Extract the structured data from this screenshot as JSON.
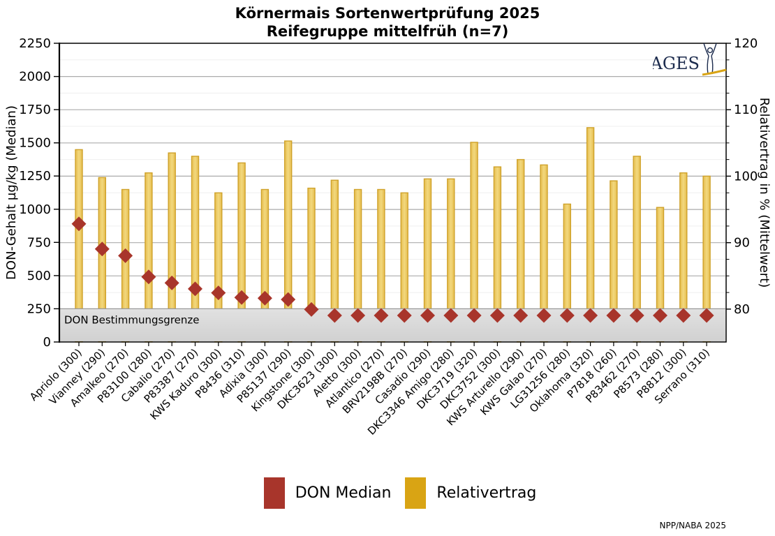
{
  "title": {
    "line1": "Körnermais Sortenwertprüfung 2025",
    "line2": "Reifegruppe mittelfrüh (n=7)"
  },
  "branding": {
    "logo": "AGES",
    "credit": "NPP/NABA 2025"
  },
  "colors": {
    "bar_fill": "#eac75e",
    "bar_border": "#cfa22b",
    "marker_red": "#a8352b",
    "legend_gold": "#d9a414",
    "band_gray": "#d8d8d8",
    "logo_navy": "#1c2b4d",
    "logo_gold": "#d9a414"
  },
  "chart_data": {
    "type": "bar",
    "categories": [
      "Apriolo (300)",
      "Vianney (290)",
      "Amalkeo (270)",
      "P83100 (280)",
      "Cabalio (270)",
      "P83387 (270)",
      "KWS Kaduro (300)",
      "P8436 (310)",
      "Adixia (300)",
      "P85137 (290)",
      "Kingstone (300)",
      "DKC3623 (300)",
      "Aletto (300)",
      "Atlantico (270)",
      "BRV2198B (270)",
      "Casadio (290)",
      "DKC3346 Amigo (280)",
      "DKC3719 (320)",
      "DKC3752 (300)",
      "KWS Arturello (290)",
      "KWS Galao (270)",
      "LG31256 (280)",
      "Oklahoma (320)",
      "P7818 (260)",
      "P83462 (270)",
      "P8573 (280)",
      "P8812 (300)",
      "Serrano (310)"
    ],
    "series": [
      {
        "name": "DON Median",
        "type": "scatter",
        "marker": "diamond",
        "axis": "left",
        "color": "#a8352b",
        "values": [
          890,
          700,
          650,
          490,
          445,
          400,
          370,
          335,
          330,
          320,
          245,
          200,
          200,
          200,
          200,
          200,
          200,
          200,
          200,
          200,
          200,
          200,
          200,
          200,
          200,
          200,
          200,
          200
        ]
      },
      {
        "name": "Relativertrag",
        "type": "bar",
        "axis": "right",
        "color": "#eac75e",
        "border_color": "#cfa22b",
        "values": [
          104.0,
          99.8,
          98.0,
          100.5,
          103.5,
          103.0,
          97.5,
          102.0,
          98.0,
          105.3,
          98.2,
          99.4,
          98.0,
          98.0,
          97.5,
          99.6,
          99.6,
          105.1,
          101.4,
          102.5,
          101.7,
          95.8,
          107.3,
          99.3,
          103.0,
          95.3,
          100.5,
          100.0
        ]
      }
    ],
    "left_axis": {
      "label": "DON-Gehalt µg/kg (Median)",
      "range": [
        0,
        2250
      ],
      "ticks": [
        0,
        250,
        500,
        750,
        1000,
        1250,
        1500,
        1750,
        2000,
        2250
      ]
    },
    "right_axis": {
      "label": "Relativertrag in % (Mittelwert)",
      "range": [
        80,
        120
      ],
      "ticks": [
        80,
        90,
        100,
        110,
        120
      ],
      "minor_step": 2.5,
      "grid": "major+minor"
    },
    "band": {
      "label": "DON Bestimmungsgrenze",
      "from": 0,
      "to": 250,
      "color": "#d8d8d8"
    },
    "legend": [
      {
        "label": "DON Median",
        "color": "#a8352b"
      },
      {
        "label": "Relativertrag",
        "color": "#d9a414"
      }
    ]
  }
}
